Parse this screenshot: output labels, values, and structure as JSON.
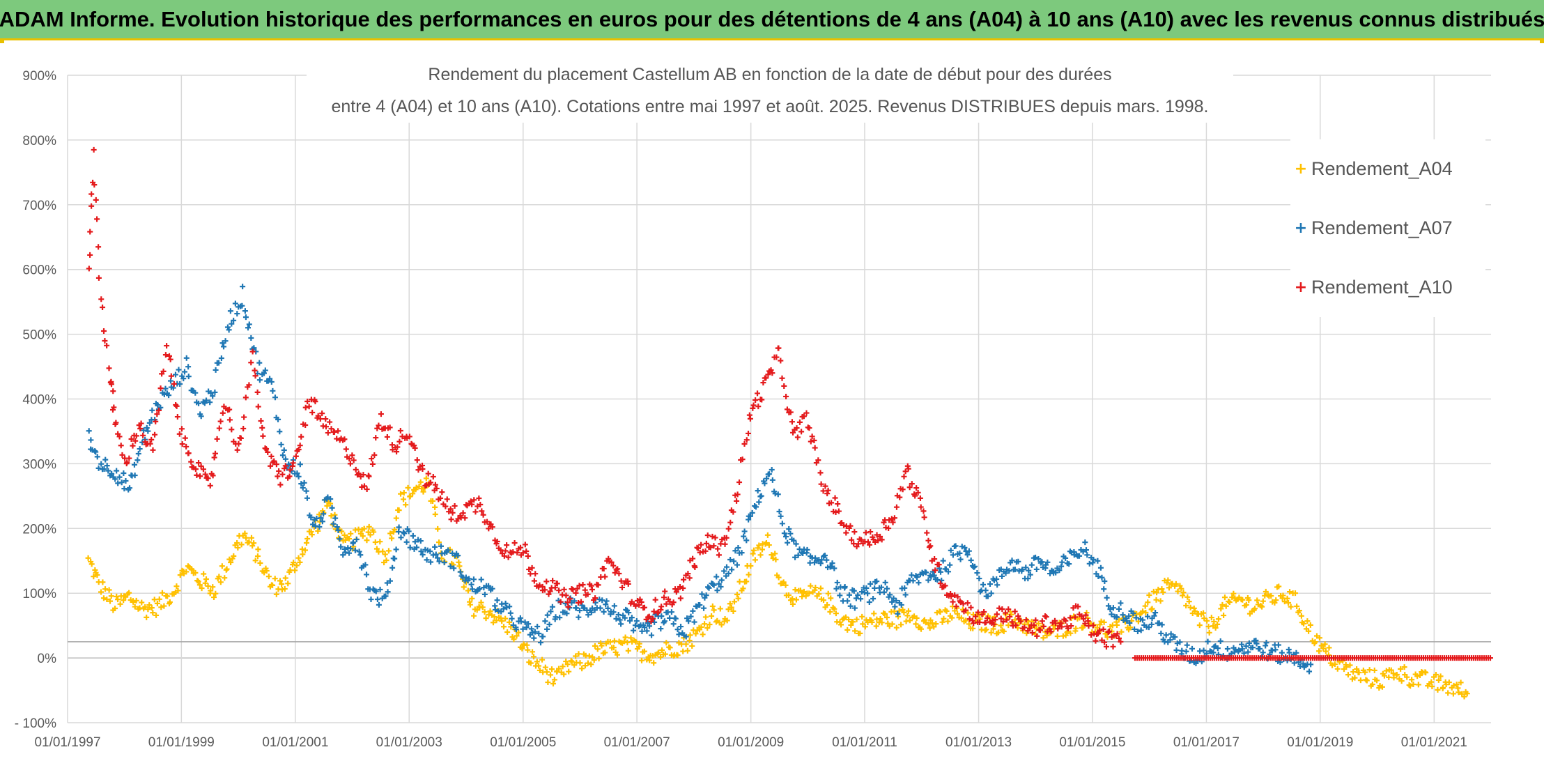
{
  "banner": {
    "title": "ADAM Informe. Evolution historique des performances en euros pour des détentions de 4 ans (A04) à 10 ans (A10) avec les revenus connus distribués"
  },
  "chart_data": {
    "type": "scatter",
    "title_line1": "Rendement du placement Castellum AB en fonction de la date de début pour des durées",
    "title_line2": "entre 4 (A04) et 10 ans (A10). Cotations entre mai 1997 et août. 2025. Revenus DISTRIBUES depuis mars. 1998.",
    "xlim": [
      "1997-01-01",
      "2022-01-01"
    ],
    "ylim": [
      -100,
      900
    ],
    "y_ticks": [
      -100,
      0,
      100,
      200,
      300,
      400,
      500,
      600,
      700,
      800,
      900
    ],
    "y_tick_labels": [
      "- 100%",
      "0%",
      "100%",
      "200%",
      "300%",
      "400%",
      "500%",
      "600%",
      "700%",
      "800%",
      "900%"
    ],
    "x_ticks": [
      "1997-01-01",
      "1999-01-01",
      "2001-01-01",
      "2003-01-01",
      "2005-01-01",
      "2007-01-01",
      "2009-01-01",
      "2011-01-01",
      "2013-01-01",
      "2015-01-01",
      "2017-01-01",
      "2019-01-01",
      "2021-01-01"
    ],
    "x_tick_labels": [
      "01/01/1997",
      "01/01/1999",
      "01/01/2001",
      "01/01/2003",
      "01/01/2005",
      "01/01/2007",
      "01/01/2009",
      "01/01/2011",
      "01/01/2013",
      "01/01/2015",
      "01/01/2017",
      "01/01/2019",
      "01/01/2021"
    ],
    "grid": true,
    "legend_position": "right",
    "series": [
      {
        "name": "Rendement_A04",
        "color": "#ffc000",
        "x": [
          "1997-05-15",
          "1997-08-01",
          "1997-11-01",
          "1998-02-01",
          "1998-05-01",
          "1998-08-01",
          "1998-11-01",
          "1999-02-01",
          "1999-05-01",
          "1999-08-01",
          "1999-11-01",
          "2000-02-01",
          "2000-05-01",
          "2000-08-01",
          "2000-11-01",
          "2001-02-01",
          "2001-05-01",
          "2001-08-01",
          "2001-11-01",
          "2002-02-01",
          "2002-05-01",
          "2002-08-01",
          "2002-11-01",
          "2003-02-01",
          "2003-05-01",
          "2003-08-01",
          "2003-11-01",
          "2004-02-01",
          "2004-05-01",
          "2004-08-01",
          "2004-11-01",
          "2005-02-01",
          "2005-05-01",
          "2005-08-01",
          "2005-11-01",
          "2006-02-01",
          "2006-05-01",
          "2006-08-01",
          "2006-11-01",
          "2007-02-01",
          "2007-05-01",
          "2007-08-01",
          "2007-11-01",
          "2008-02-01",
          "2008-05-01",
          "2008-08-01",
          "2008-11-01",
          "2009-02-01",
          "2009-05-01",
          "2009-08-01",
          "2009-11-01",
          "2010-02-01",
          "2010-05-01",
          "2010-08-01",
          "2010-11-01",
          "2011-02-01",
          "2011-05-01",
          "2011-08-01",
          "2011-11-01",
          "2012-02-01",
          "2012-05-01",
          "2012-08-01",
          "2012-11-01",
          "2013-02-01",
          "2013-05-01",
          "2013-08-01",
          "2013-11-01",
          "2014-02-01",
          "2014-05-01",
          "2014-08-01",
          "2014-11-01",
          "2015-02-01",
          "2015-05-01",
          "2015-08-01",
          "2015-11-01",
          "2016-02-01",
          "2016-05-01",
          "2016-08-01",
          "2016-11-01",
          "2017-02-01",
          "2017-05-01",
          "2017-08-01",
          "2017-11-01",
          "2018-02-01",
          "2018-05-01",
          "2018-08-01",
          "2018-11-01",
          "2019-02-01",
          "2019-05-01",
          "2019-08-01",
          "2019-11-01",
          "2020-02-01",
          "2020-05-01",
          "2020-08-01",
          "2020-11-01",
          "2021-02-01",
          "2021-05-01",
          "2021-08-01"
        ],
        "values": [
          150,
          110,
          80,
          95,
          75,
          80,
          100,
          140,
          120,
          105,
          150,
          190,
          160,
          110,
          115,
          160,
          200,
          240,
          175,
          185,
          200,
          155,
          240,
          260,
          270,
          160,
          150,
          80,
          75,
          60,
          40,
          5,
          -15,
          -35,
          -10,
          -5,
          10,
          15,
          20,
          10,
          5,
          15,
          20,
          40,
          70,
          60,
          110,
          160,
          180,
          110,
          90,
          100,
          90,
          60,
          50,
          55,
          60,
          60,
          70,
          50,
          60,
          70,
          55,
          55,
          50,
          60,
          50,
          40,
          40,
          50,
          60,
          50,
          40,
          50,
          70,
          90,
          110,
          100,
          60,
          50,
          80,
          90,
          80,
          90,
          100,
          85,
          40,
          10,
          -10,
          -25,
          -30,
          -35,
          -20,
          -30,
          -35,
          -40,
          -45,
          -55
        ]
      },
      {
        "name": "Rendement_A07",
        "color": "#1f77b4",
        "x": [
          "1997-05-15",
          "1997-08-01",
          "1997-11-01",
          "1998-02-01",
          "1998-05-01",
          "1998-08-01",
          "1998-11-01",
          "1999-02-01",
          "1999-05-01",
          "1999-08-01",
          "1999-11-01",
          "2000-02-01",
          "2000-05-01",
          "2000-08-01",
          "2000-11-01",
          "2001-02-01",
          "2001-05-01",
          "2001-08-01",
          "2001-11-01",
          "2002-02-01",
          "2002-05-01",
          "2002-08-01",
          "2002-11-01",
          "2003-02-01",
          "2003-05-01",
          "2003-08-01",
          "2003-11-01",
          "2004-02-01",
          "2004-05-01",
          "2004-08-01",
          "2004-11-01",
          "2005-02-01",
          "2005-05-01",
          "2005-08-01",
          "2005-11-01",
          "2006-02-01",
          "2006-05-01",
          "2006-08-01",
          "2006-11-01",
          "2007-02-01",
          "2007-05-01",
          "2007-08-01",
          "2007-11-01",
          "2008-02-01",
          "2008-05-01",
          "2008-08-01",
          "2008-11-01",
          "2009-02-01",
          "2009-05-01",
          "2009-08-01",
          "2009-11-01",
          "2010-02-01",
          "2010-05-01",
          "2010-08-01",
          "2010-11-01",
          "2011-02-01",
          "2011-05-01",
          "2011-08-01",
          "2011-11-01",
          "2012-02-01",
          "2012-05-01",
          "2012-08-01",
          "2012-11-01",
          "2013-02-01",
          "2013-05-01",
          "2013-08-01",
          "2013-11-01",
          "2014-02-01",
          "2014-05-01",
          "2014-08-01",
          "2014-11-01",
          "2015-02-01",
          "2015-05-01",
          "2015-08-01",
          "2015-11-01",
          "2016-02-01",
          "2016-05-01",
          "2016-08-01",
          "2016-11-01",
          "2017-02-01",
          "2017-05-01",
          "2017-08-01",
          "2017-11-01",
          "2018-02-01",
          "2018-05-01",
          "2018-08-01",
          "2018-11-01"
        ],
        "values": [
          340,
          300,
          290,
          260,
          340,
          390,
          420,
          450,
          380,
          420,
          520,
          560,
          450,
          420,
          300,
          290,
          200,
          240,
          170,
          180,
          100,
          90,
          200,
          180,
          160,
          160,
          150,
          110,
          110,
          80,
          60,
          40,
          35,
          75,
          80,
          70,
          90,
          70,
          60,
          35,
          55,
          60,
          40,
          80,
          110,
          130,
          170,
          240,
          290,
          200,
          160,
          150,
          160,
          100,
          90,
          100,
          110,
          80,
          120,
          130,
          130,
          160,
          170,
          100,
          120,
          150,
          130,
          150,
          130,
          150,
          170,
          140,
          80,
          70,
          50,
          60,
          30,
          10,
          0,
          20,
          10,
          15,
          20,
          10,
          5,
          0,
          -10
        ]
      },
      {
        "name": "Rendement_A10",
        "color": "#e41a1c",
        "x": [
          "1997-05-15",
          "1997-06-15",
          "1997-08-01",
          "1997-10-01",
          "1997-11-01",
          "1998-01-01",
          "1998-04-01",
          "1998-07-01",
          "1998-10-01",
          "1999-01-01",
          "1999-04-01",
          "1999-07-01",
          "1999-10-01",
          "2000-01-01",
          "2000-04-01",
          "2000-07-01",
          "2000-10-01",
          "2001-01-01",
          "2001-04-01",
          "2001-07-01",
          "2001-10-01",
          "2002-01-01",
          "2002-04-01",
          "2002-07-01",
          "2002-10-01",
          "2003-01-01",
          "2003-04-01",
          "2003-07-01",
          "2003-10-01",
          "2004-01-01",
          "2004-04-01",
          "2004-07-01",
          "2004-10-01",
          "2005-01-01",
          "2005-04-01",
          "2005-07-01",
          "2005-10-01",
          "2006-01-01",
          "2006-04-01",
          "2006-07-01",
          "2006-10-01",
          "2007-01-01",
          "2007-04-01",
          "2007-07-01",
          "2007-10-01",
          "2008-01-01",
          "2008-04-01",
          "2008-07-01",
          "2008-10-01",
          "2009-01-01",
          "2009-04-01",
          "2009-07-01",
          "2009-10-01",
          "2010-01-01",
          "2010-04-01",
          "2010-07-01",
          "2010-10-01",
          "2011-01-01",
          "2011-04-01",
          "2011-07-01",
          "2011-10-01",
          "2012-01-01",
          "2012-04-01",
          "2012-07-01",
          "2012-10-01",
          "2013-01-01",
          "2013-04-01",
          "2013-07-01",
          "2013-10-01",
          "2014-01-01",
          "2014-04-01",
          "2014-07-01",
          "2014-10-01",
          "2015-01-01",
          "2015-04-01",
          "2015-07-01"
        ],
        "values": [
          590,
          780,
          560,
          430,
          370,
          300,
          360,
          320,
          480,
          340,
          300,
          260,
          400,
          320,
          460,
          310,
          280,
          300,
          400,
          360,
          340,
          310,
          260,
          370,
          330,
          350,
          280,
          260,
          220,
          230,
          240,
          190,
          160,
          170,
          120,
          110,
          90,
          100,
          100,
          150,
          120,
          80,
          70,
          90,
          100,
          150,
          180,
          170,
          250,
          380,
          420,
          470,
          340,
          370,
          270,
          230,
          190,
          180,
          190,
          220,
          290,
          230,
          140,
          100,
          80,
          60,
          60,
          70,
          50,
          45,
          55,
          50,
          70,
          40,
          30,
          25
        ]
      }
    ],
    "a10_zero_line": {
      "from": "2015-10-01",
      "to": "2022-01-01",
      "value": 0
    }
  },
  "legend": {
    "items": [
      {
        "label": "Rendement_A04",
        "color": "#ffc000",
        "mark": "+"
      },
      {
        "label": "Rendement_A07",
        "color": "#1f77b4",
        "mark": "+"
      },
      {
        "label": "Rendement_A10",
        "color": "#e41a1c",
        "mark": "+"
      }
    ]
  }
}
